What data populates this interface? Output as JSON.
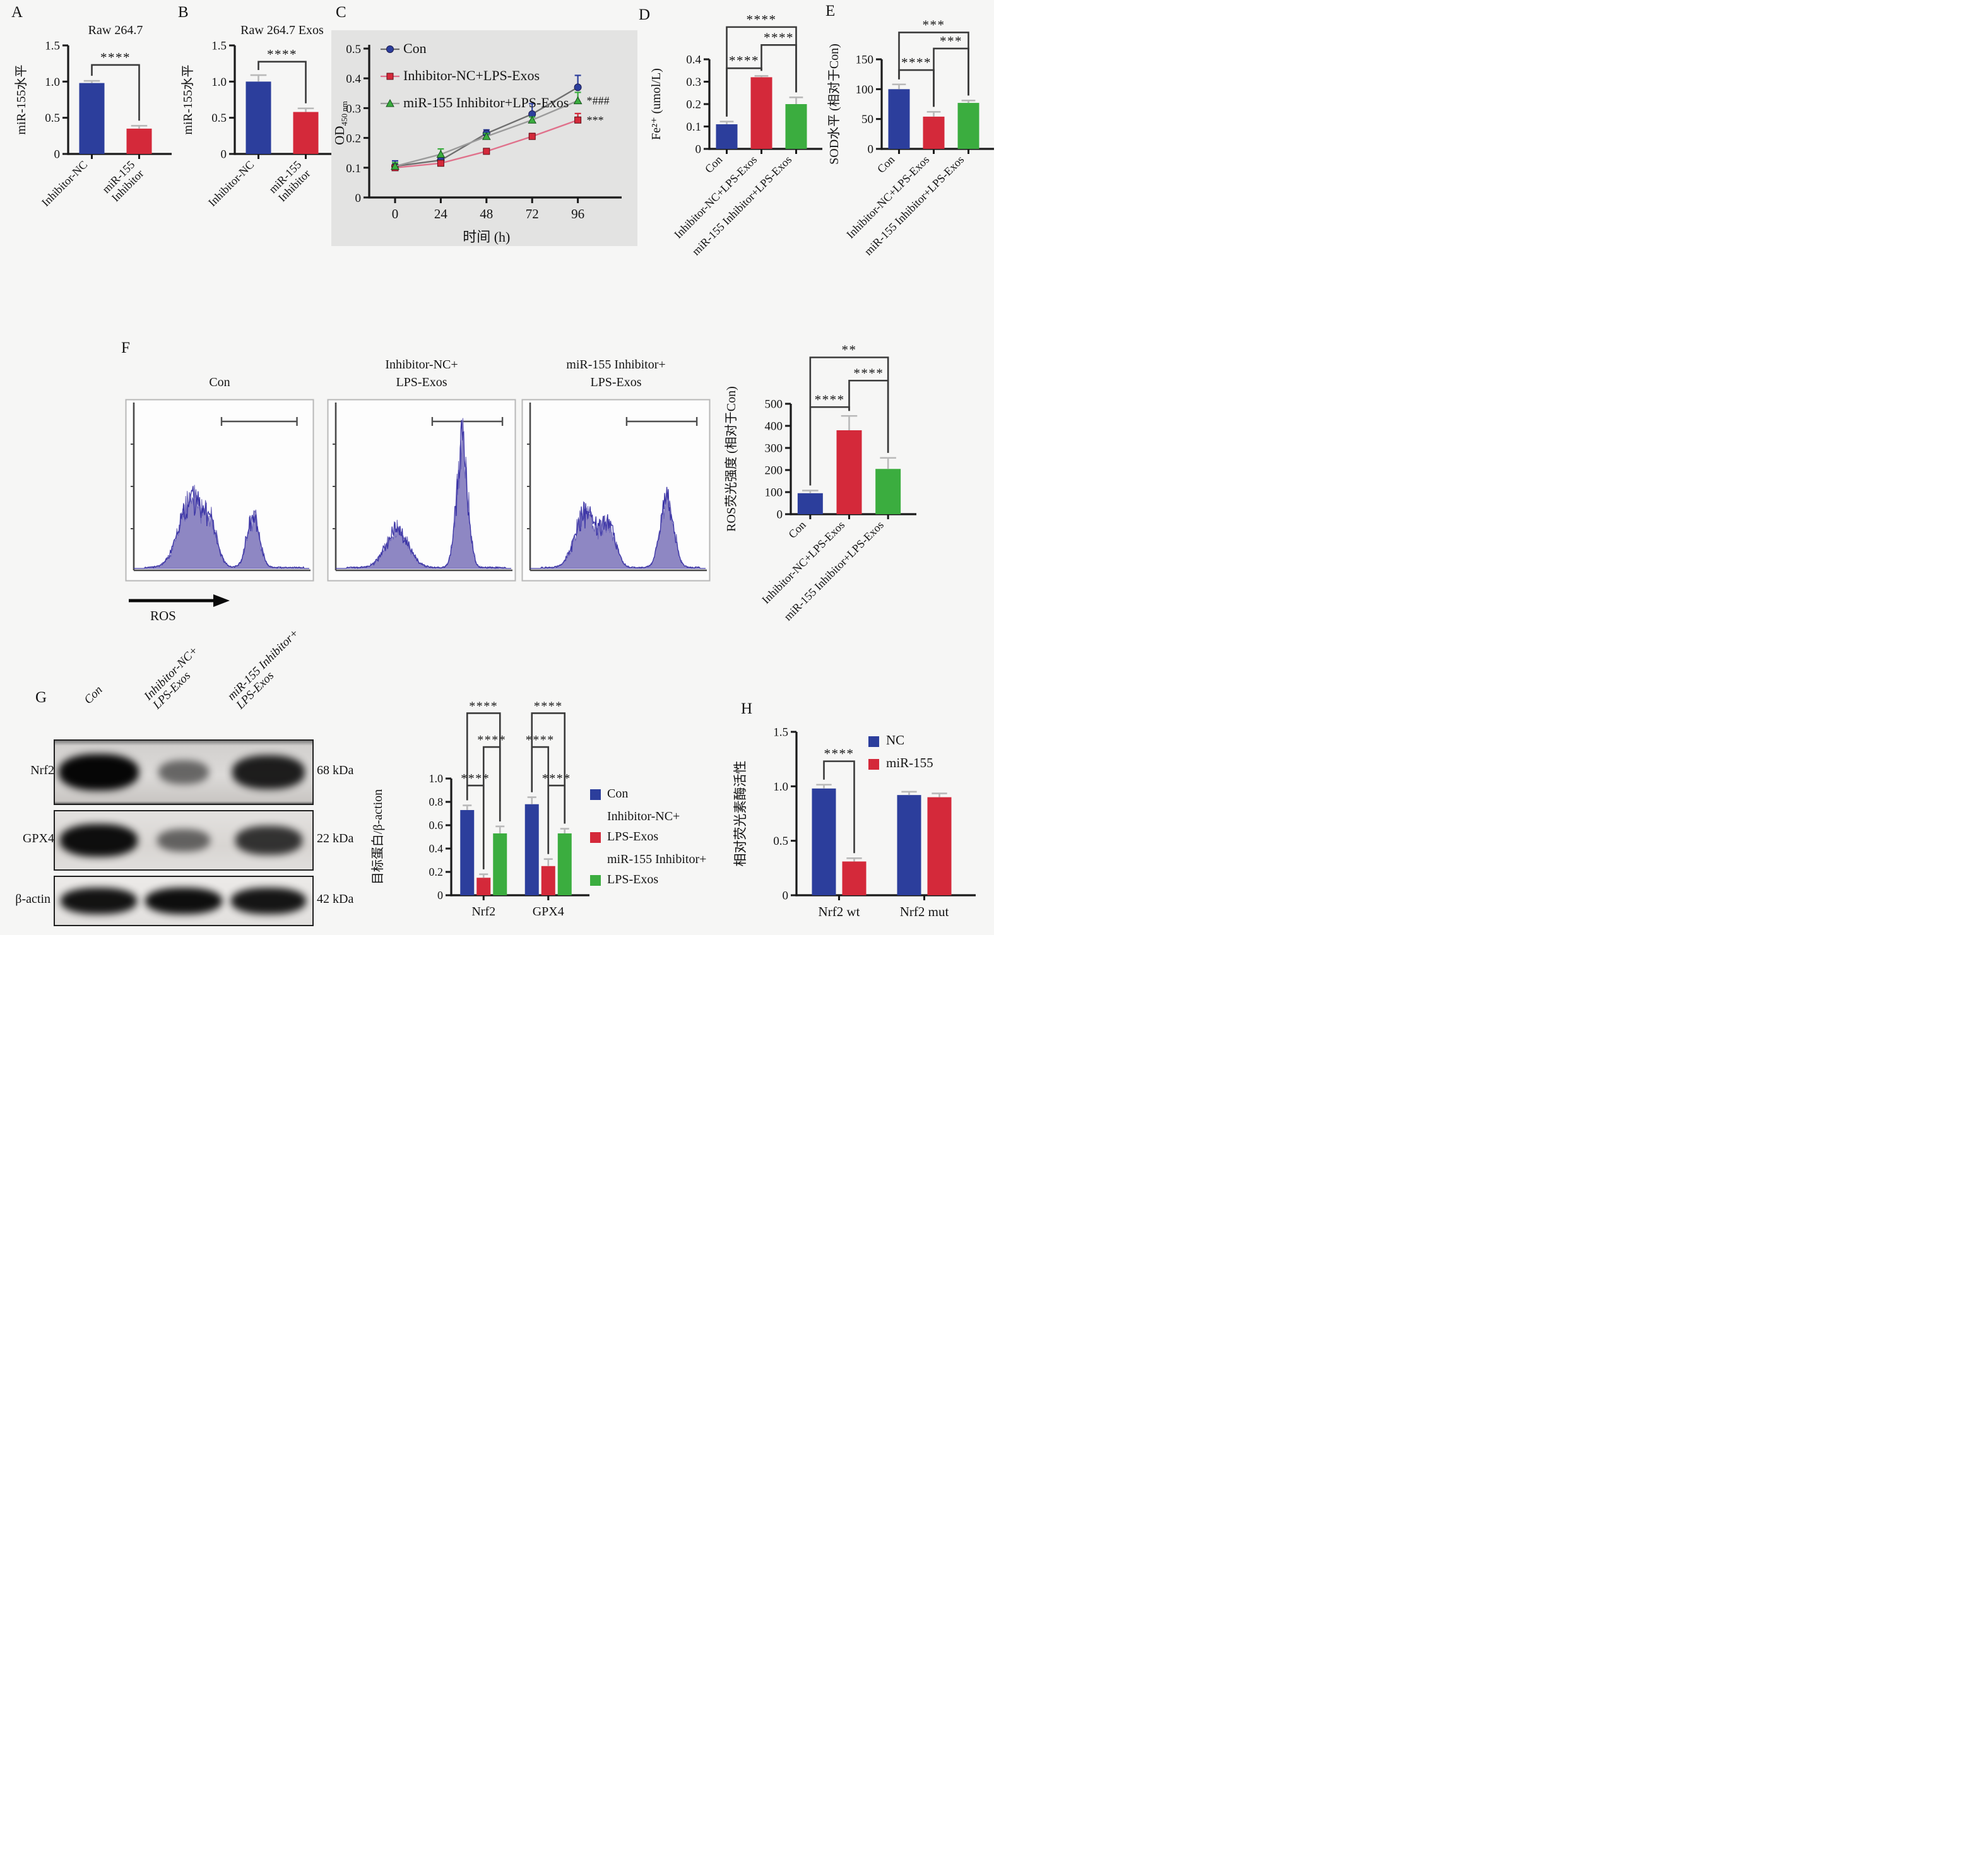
{
  "colors": {
    "blue": "#2c3e9c",
    "red": "#d4293a",
    "green": "#3bad3f",
    "err": "#b9b9b9",
    "bracket": "#3a3a3a",
    "hist_fill": "#8e87c3",
    "hist_stroke": "#3c35a6",
    "panel_c_bg": "#e3e3e2"
  },
  "panels": {
    "A": {
      "letter": "A"
    },
    "B": {
      "letter": "B"
    },
    "C": {
      "letter": "C"
    },
    "D": {
      "letter": "D"
    },
    "E": {
      "letter": "E"
    },
    "F": {
      "letter": "F",
      "flow_titles": [
        [
          "Con"
        ],
        [
          "Inhibitor-NC+",
          "LPS-Exos"
        ],
        [
          "miR-155 Inhibitor+",
          "LPS-Exos"
        ]
      ],
      "arrow_label": "ROS"
    },
    "G": {
      "letter": "G",
      "lanes": [
        [
          "Con"
        ],
        [
          "Inhibitor-NC+",
          "LPS-Exos"
        ],
        [
          "miR-155 Inhibitor+",
          "LPS-Exos"
        ]
      ],
      "rows": [
        {
          "protein": "Nrf2",
          "kda": "68 kDa",
          "bands": [
            1.0,
            0.38,
            0.85
          ]
        },
        {
          "protein": "GPX4",
          "kda": "22 kDa",
          "bands": [
            0.95,
            0.42,
            0.72
          ]
        },
        {
          "protein": "β-actin",
          "kda": "42 kDa",
          "bands": [
            0.92,
            0.95,
            0.9
          ]
        }
      ]
    },
    "H": {
      "letter": "H"
    }
  },
  "chart_data": [
    {
      "id": "A",
      "type": "bar",
      "title": "Raw 264.7",
      "ylabel": "miR-155水平",
      "ylim": [
        0,
        1.5
      ],
      "yticks": [
        0,
        0.5,
        1.0,
        1.5
      ],
      "ytick_labels": [
        "0",
        "0.5",
        "1.0",
        "1.5"
      ],
      "categories": [
        [
          "Inhibitor-NC"
        ],
        [
          "miR-155",
          "Inhibitor"
        ]
      ],
      "bars": [
        [
          {
            "color": "blue",
            "v": 0.98,
            "e": 0.03
          }
        ],
        [
          {
            "color": "red",
            "v": 0.35,
            "e": 0.04
          }
        ]
      ],
      "sig": [
        {
          "a": [
            0,
            0
          ],
          "b": [
            1,
            0
          ],
          "label": "****",
          "yf": 0.18
        }
      ]
    },
    {
      "id": "B",
      "type": "bar",
      "title": "Raw 264.7 Exos",
      "ylabel": "miR-155水平",
      "ylim": [
        0,
        1.5
      ],
      "yticks": [
        0,
        0.5,
        1.0,
        1.5
      ],
      "ytick_labels": [
        "0",
        "0.5",
        "1.0",
        "1.5"
      ],
      "categories": [
        [
          "Inhibitor-NC"
        ],
        [
          "miR-155",
          "Inhibitor"
        ]
      ],
      "bars": [
        [
          {
            "color": "blue",
            "v": 1.0,
            "e": 0.09
          }
        ],
        [
          {
            "color": "red",
            "v": 0.58,
            "e": 0.05
          }
        ]
      ],
      "sig": [
        {
          "a": [
            0,
            0
          ],
          "b": [
            1,
            0
          ],
          "label": "****",
          "yf": 0.15
        }
      ]
    },
    {
      "id": "C",
      "type": "line",
      "ylabel_main": "OD",
      "ylabel_sub": "450 nm",
      "xlabel": "时间 (h)",
      "ylim": [
        0,
        0.5
      ],
      "yticks": [
        0,
        0.1,
        0.2,
        0.3,
        0.4,
        0.5
      ],
      "ytick_labels": [
        "0",
        "0.1",
        "0.2",
        "0.3",
        "0.4",
        "0.5"
      ],
      "xticks": [
        0,
        24,
        48,
        72,
        96
      ],
      "xtick_labels": [
        "0",
        "24",
        "48",
        "72",
        "96"
      ],
      "series": [
        {
          "name": "Con",
          "marker": "circle",
          "color": "blue",
          "line": "#6f6f6f",
          "values": [
            0.105,
            0.125,
            0.215,
            0.28,
            0.37
          ],
          "errors": [
            0.018,
            0.008,
            0.012,
            0.035,
            0.04
          ]
        },
        {
          "name": "Inhibitor-NC+LPS-Exos",
          "marker": "square",
          "color": "red",
          "line": "#e0718b",
          "values": [
            0.1,
            0.115,
            0.155,
            0.205,
            0.26
          ],
          "errors": [
            0.008,
            0.008,
            0.008,
            0.01,
            0.022
          ]
        },
        {
          "name": "miR-155 Inhibitor+LPS-Exos",
          "marker": "triangle",
          "color": "green",
          "line": "#9b9b9b",
          "values": [
            0.105,
            0.145,
            0.205,
            0.26,
            0.325
          ],
          "errors": [
            0.012,
            0.018,
            0.01,
            0.01,
            0.028
          ]
        }
      ],
      "annotations": [
        {
          "label": "*###",
          "series": 2
        },
        {
          "label": "***",
          "series": 1
        }
      ]
    },
    {
      "id": "D",
      "type": "bar",
      "ylabel": "Fe²⁺ (umol/L)",
      "ylim": [
        0,
        0.4
      ],
      "yticks": [
        0,
        0.1,
        0.2,
        0.3,
        0.4
      ],
      "ytick_labels": [
        "0",
        "0.1",
        "0.2",
        "0.3",
        "0.4"
      ],
      "categories": [
        [
          "Con"
        ],
        [
          "Inhibitor-NC+LPS-Exos"
        ],
        [
          "miR-155 Inhibitor+LPS-Exos"
        ]
      ],
      "bars": [
        [
          {
            "color": "blue",
            "v": 0.11,
            "e": 0.012
          }
        ],
        [
          {
            "color": "red",
            "v": 0.32,
            "e": 0.006
          }
        ],
        [
          {
            "color": "green",
            "v": 0.2,
            "e": 0.03
          }
        ]
      ],
      "sig": [
        {
          "a": [
            0,
            0
          ],
          "b": [
            1,
            0
          ],
          "label": "****",
          "yf": 0.1
        },
        {
          "a": [
            1,
            0
          ],
          "b": [
            2,
            0
          ],
          "label": "****",
          "yf": -0.16
        },
        {
          "a": [
            0,
            0
          ],
          "b": [
            2,
            0
          ],
          "label": "****",
          "yf": -0.36
        }
      ]
    },
    {
      "id": "E",
      "type": "bar",
      "ylabel": "SOD水平 (相对于Con)",
      "ylim": [
        0,
        150
      ],
      "yticks": [
        0,
        50,
        100,
        150
      ],
      "ytick_labels": [
        "0",
        "50",
        "100",
        "150"
      ],
      "categories": [
        [
          "Con"
        ],
        [
          "Inhibitor-NC+LPS-Exos"
        ],
        [
          "miR-155 Inhibitor+LPS-Exos"
        ]
      ],
      "bars": [
        [
          {
            "color": "blue",
            "v": 100,
            "e": 8
          }
        ],
        [
          {
            "color": "red",
            "v": 54,
            "e": 8
          }
        ],
        [
          {
            "color": "green",
            "v": 77,
            "e": 4
          }
        ]
      ],
      "sig": [
        {
          "a": [
            0,
            0
          ],
          "b": [
            1,
            0
          ],
          "label": "****",
          "yf": 0.12
        },
        {
          "a": [
            1,
            0
          ],
          "b": [
            2,
            0
          ],
          "label": "***",
          "yf": -0.12
        },
        {
          "a": [
            0,
            0
          ],
          "b": [
            2,
            0
          ],
          "label": "***",
          "yf": -0.3
        }
      ]
    },
    {
      "id": "F_flow",
      "type": "histogram",
      "xlabel": "ROS",
      "hists": [
        {
          "peaks": [
            [
              0.33,
              0.07,
              0.5
            ],
            [
              0.44,
              0.04,
              0.22
            ],
            [
              0.68,
              0.035,
              0.4
            ]
          ],
          "seed": 7,
          "gate": [
            0.5,
            0.93
          ]
        },
        {
          "peaks": [
            [
              0.35,
              0.065,
              0.28
            ],
            [
              0.72,
              0.032,
              0.92
            ]
          ],
          "seed": 13,
          "gate": [
            0.55,
            0.95
          ]
        },
        {
          "peaks": [
            [
              0.32,
              0.06,
              0.42
            ],
            [
              0.45,
              0.04,
              0.28
            ],
            [
              0.78,
              0.038,
              0.52
            ]
          ],
          "seed": 29,
          "gate": [
            0.55,
            0.95
          ]
        }
      ]
    },
    {
      "id": "F_ros",
      "type": "bar",
      "ylabel": "ROS荧光强度 (相对于Con)",
      "ylim": [
        0,
        500
      ],
      "yticks": [
        0,
        100,
        200,
        300,
        400,
        500
      ],
      "ytick_labels": [
        "0",
        "100",
        "200",
        "300",
        "400",
        "500"
      ],
      "categories": [
        [
          "Con"
        ],
        [
          "Inhibitor-NC+LPS-Exos"
        ],
        [
          "miR-155 Inhibitor+LPS-Exos"
        ]
      ],
      "bars": [
        [
          {
            "color": "blue",
            "v": 95,
            "e": 12
          }
        ],
        [
          {
            "color": "red",
            "v": 380,
            "e": 65
          }
        ],
        [
          {
            "color": "green",
            "v": 205,
            "e": 50
          }
        ]
      ],
      "sig": [
        {
          "a": [
            0,
            0
          ],
          "b": [
            1,
            0
          ],
          "label": "****",
          "yf": 0.03
        },
        {
          "a": [
            1,
            0
          ],
          "b": [
            2,
            0
          ],
          "label": "****",
          "yf": -0.21
        },
        {
          "a": [
            0,
            0
          ],
          "b": [
            2,
            0
          ],
          "label": "**",
          "yf": -0.42
        }
      ]
    },
    {
      "id": "G_quant",
      "type": "bar",
      "ylabel": "目标蛋白/β-action",
      "ylim": [
        0,
        1.0
      ],
      "yticks": [
        0,
        0.2,
        0.4,
        0.6,
        0.8,
        1.0
      ],
      "ytick_labels": [
        "0",
        "0.2",
        "0.4",
        "0.6",
        "0.8",
        "1.0"
      ],
      "categories": [
        [
          "Nrf2"
        ],
        [
          "GPX4"
        ]
      ],
      "bars": [
        [
          {
            "color": "blue",
            "v": 0.73,
            "e": 0.04
          },
          {
            "color": "red",
            "v": 0.15,
            "e": 0.03
          },
          {
            "color": "green",
            "v": 0.53,
            "e": 0.06
          }
        ],
        [
          {
            "color": "blue",
            "v": 0.78,
            "e": 0.06
          },
          {
            "color": "red",
            "v": 0.25,
            "e": 0.06
          },
          {
            "color": "green",
            "v": 0.53,
            "e": 0.04
          }
        ]
      ],
      "sig": [
        {
          "a": [
            0,
            0
          ],
          "b": [
            0,
            1
          ],
          "label": "****",
          "yf": 0.06
        },
        {
          "a": [
            0,
            1
          ],
          "b": [
            0,
            2
          ],
          "label": "****",
          "yf": -0.27
        },
        {
          "a": [
            0,
            0
          ],
          "b": [
            0,
            2
          ],
          "label": "****",
          "yf": -0.56
        },
        {
          "a": [
            1,
            0
          ],
          "b": [
            1,
            1
          ],
          "label": "****",
          "yf": -0.27
        },
        {
          "a": [
            1,
            1
          ],
          "b": [
            1,
            2
          ],
          "label": "****",
          "yf": 0.06
        },
        {
          "a": [
            1,
            0
          ],
          "b": [
            1,
            2
          ],
          "label": "****",
          "yf": -0.56
        }
      ],
      "legend": [
        {
          "color": "blue",
          "lines": [
            "Con"
          ]
        },
        {
          "color": "red",
          "lines": [
            "Inhibitor-NC+",
            "LPS-Exos"
          ]
        },
        {
          "color": "green",
          "lines": [
            "miR-155 Inhibitor+",
            "LPS-Exos"
          ]
        }
      ]
    },
    {
      "id": "H",
      "type": "bar",
      "ylabel": "相对荧光素酶活性",
      "ylim": [
        0,
        1.5
      ],
      "yticks": [
        0,
        0.5,
        1.0,
        1.5
      ],
      "ytick_labels": [
        "0",
        "0.5",
        "1.0",
        "1.5"
      ],
      "categories": [
        [
          "Nrf2 wt"
        ],
        [
          "Nrf2 mut"
        ]
      ],
      "bars": [
        [
          {
            "color": "blue",
            "v": 0.98,
            "e": 0.035
          },
          {
            "color": "red",
            "v": 0.31,
            "e": 0.03
          }
        ],
        [
          {
            "color": "blue",
            "v": 0.92,
            "e": 0.03
          },
          {
            "color": "red",
            "v": 0.9,
            "e": 0.035
          }
        ]
      ],
      "sig": [
        {
          "a": [
            0,
            0
          ],
          "b": [
            0,
            1
          ],
          "label": "****",
          "yf": 0.18
        }
      ],
      "legend": [
        {
          "color": "blue",
          "lines": [
            "NC"
          ]
        },
        {
          "color": "red",
          "lines": [
            "miR-155"
          ]
        }
      ]
    }
  ]
}
